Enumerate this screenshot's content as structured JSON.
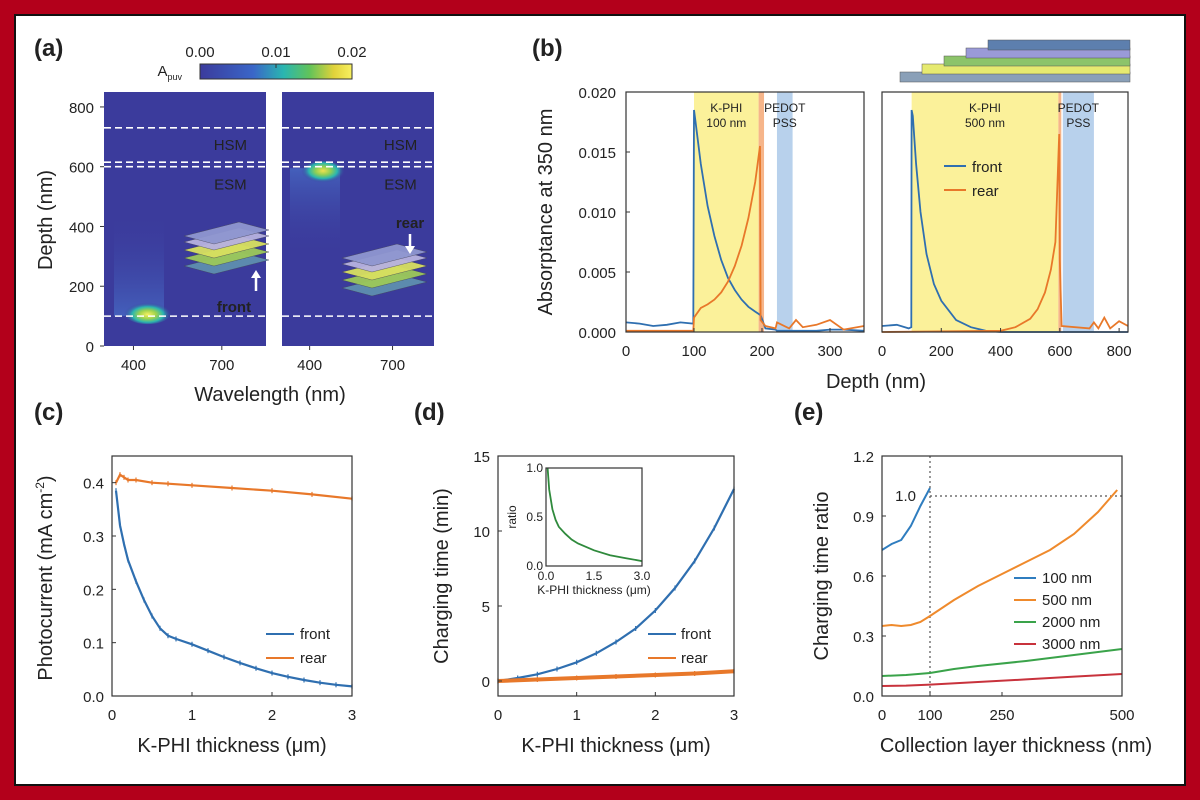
{
  "panels": {
    "a": "(a)",
    "b": "(b)",
    "c": "(c)",
    "d": "(d)",
    "e": "(e)"
  },
  "colors": {
    "front": "#2f6fb0",
    "rear": "#e8782a",
    "s100": "#2f7dbf",
    "s500": "#ef8a2c",
    "s2000": "#3aa34a",
    "s3000": "#c8323c",
    "yellow_band": "#fbf19a",
    "blue_band": "#b8d1ec",
    "background_map": "#3b3b9c",
    "frame": "#b3001b"
  },
  "chart_data": [
    {
      "id": "a",
      "type": "heatmap",
      "colorbar_label": "A",
      "colorbar_subscript": "puv",
      "colorbar_ticks": [
        "0.00",
        "0.01",
        "0.02"
      ],
      "colorbar_range": [
        0,
        0.02
      ],
      "xlabel": "Wavelength (nm)",
      "ylabel": "Depth (nm)",
      "ylim": [
        0,
        850
      ],
      "yticks": [
        "0",
        "200",
        "400",
        "600",
        "800"
      ],
      "xticks": [
        "400",
        "700"
      ],
      "layer_lines_depth": [
        100,
        600,
        615,
        730
      ],
      "layer_labels": [
        "HSM",
        "ESM"
      ],
      "subplots": [
        {
          "name": "front",
          "annotation": "front",
          "hotspot_depth": 100,
          "hotspot_wavelength": 380
        },
        {
          "name": "rear",
          "annotation": "rear",
          "hotspot_depth": 595,
          "hotspot_wavelength": 380
        }
      ]
    },
    {
      "id": "b",
      "type": "line",
      "ylabel": "Absorptance at 350 nm",
      "xlabel": "Depth (nm)",
      "ylim": [
        0,
        0.02
      ],
      "yticks": [
        "0.000",
        "0.005",
        "0.010",
        "0.015",
        "0.020"
      ],
      "legend": [
        "front",
        "rear"
      ],
      "subplots": [
        {
          "xlim": [
            0,
            350
          ],
          "xticks": [
            "0",
            "100",
            "200",
            "300"
          ],
          "band_labels": {
            "kphi": "K-PHI",
            "kphi_thickness": "100 nm",
            "pedot": "PEDOT",
            "pss": "PSS"
          },
          "yellow_band": [
            100,
            195
          ],
          "orange_band": [
            195,
            203
          ],
          "blue_band": [
            222,
            245
          ],
          "series": [
            {
              "name": "front",
              "x": [
                0,
                20,
                40,
                60,
                80,
                99,
                100,
                102,
                110,
                120,
                130,
                140,
                150,
                160,
                170,
                180,
                190,
                198,
                205,
                220,
                222,
                240,
                260,
                280,
                300,
                320,
                350
              ],
              "y": [
                0.0008,
                0.0007,
                0.0005,
                0.0006,
                0.0008,
                0.0007,
                0.0185,
                0.0176,
                0.014,
                0.0105,
                0.008,
                0.006,
                0.0045,
                0.0035,
                0.0027,
                0.0021,
                0.0017,
                0.0014,
                0.0003,
                0.0002,
                0.0001,
                0.0001,
                0.0001,
                0.0001,
                0.0002,
                0.0002,
                0.0001
              ]
            },
            {
              "name": "rear",
              "x": [
                0,
                99,
                100,
                110,
                120,
                130,
                140,
                150,
                160,
                170,
                180,
                190,
                197,
                198,
                205,
                220,
                222,
                240,
                250,
                260,
                280,
                300,
                320,
                350
              ],
              "y": [
                0.0001,
                0.0001,
                0.0012,
                0.002,
                0.0023,
                0.0027,
                0.0033,
                0.0042,
                0.0055,
                0.0072,
                0.0095,
                0.0125,
                0.0155,
                0.001,
                0.0005,
                0.0003,
                0.0008,
                0.0003,
                0.001,
                0.0004,
                0.0006,
                0.001,
                0.0002,
                0.0005
              ]
            }
          ]
        },
        {
          "xlim": [
            0,
            830
          ],
          "xticks": [
            "0",
            "200",
            "400",
            "600",
            "800"
          ],
          "band_labels": {
            "kphi": "K-PHI",
            "kphi_thickness": "500 nm",
            "pedot": "PEDOT",
            "pss": "PSS"
          },
          "yellow_band": [
            100,
            595
          ],
          "orange_band": [
            595,
            605
          ],
          "blue_band": [
            610,
            715
          ],
          "series": [
            {
              "name": "front",
              "x": [
                0,
                50,
                90,
                99,
                100,
                104,
                115,
                130,
                150,
                175,
                200,
                250,
                300,
                350,
                400,
                600,
                620,
                700,
                715,
                830
              ],
              "y": [
                0.0005,
                0.0006,
                0.0003,
                0.0004,
                0.0185,
                0.018,
                0.014,
                0.01,
                0.0065,
                0.004,
                0.0026,
                0.001,
                0.0004,
                0.0001,
                0.0,
                0.0,
                0.0,
                0.0,
                0.0,
                0.0
              ]
            },
            {
              "name": "rear",
              "x": [
                0,
                400,
                450,
                500,
                525,
                550,
                570,
                585,
                598,
                600,
                606,
                700,
                715,
                730,
                750,
                770,
                800,
                830
              ],
              "y": [
                0.0,
                0.0001,
                0.0004,
                0.0011,
                0.0019,
                0.0033,
                0.0052,
                0.0075,
                0.0165,
                0.006,
                0.0005,
                0.0003,
                0.0008,
                0.0003,
                0.0012,
                0.0003,
                0.0009,
                0.0005
              ]
            }
          ]
        }
      ]
    },
    {
      "id": "c",
      "type": "line",
      "ylabel": "Photocurrent (mA cm",
      "ylabel_sup": "-2",
      "ylabel_end": ")",
      "xlabel": "K-PHI thickness (μm)",
      "xlim": [
        0,
        3
      ],
      "ylim": [
        0,
        0.45
      ],
      "xticks": [
        "0",
        "1",
        "2",
        "3"
      ],
      "yticks": [
        "0.0",
        "0.1",
        "0.2",
        "0.3",
        "0.4"
      ],
      "legend": [
        "front",
        "rear"
      ],
      "series": [
        {
          "name": "front",
          "x": [
            0.05,
            0.1,
            0.15,
            0.2,
            0.3,
            0.4,
            0.5,
            0.6,
            0.7,
            0.8,
            1.0,
            1.2,
            1.4,
            1.6,
            1.8,
            2.0,
            2.2,
            2.4,
            2.6,
            2.8,
            3.0
          ],
          "y": [
            0.385,
            0.32,
            0.285,
            0.255,
            0.215,
            0.18,
            0.15,
            0.127,
            0.113,
            0.107,
            0.097,
            0.085,
            0.073,
            0.062,
            0.052,
            0.043,
            0.036,
            0.03,
            0.025,
            0.021,
            0.018
          ]
        },
        {
          "name": "rear",
          "x": [
            0.05,
            0.1,
            0.15,
            0.2,
            0.3,
            0.5,
            0.7,
            1.0,
            1.5,
            2.0,
            2.5,
            3.0
          ],
          "y": [
            0.4,
            0.415,
            0.41,
            0.405,
            0.405,
            0.4,
            0.398,
            0.395,
            0.39,
            0.385,
            0.378,
            0.37
          ]
        }
      ]
    },
    {
      "id": "d",
      "type": "line",
      "ylabel": "Charging time (min)",
      "xlabel": "K-PHI thickness (μm)",
      "xlim": [
        0,
        3
      ],
      "ylim": [
        -1,
        15
      ],
      "xticks": [
        "0",
        "1",
        "2",
        "3"
      ],
      "yticks": [
        "0",
        "5",
        "10",
        "15"
      ],
      "legend": [
        "front",
        "rear"
      ],
      "series": [
        {
          "name": "front",
          "x": [
            0,
            0.25,
            0.5,
            0.75,
            1.0,
            1.25,
            1.5,
            1.75,
            2.0,
            2.25,
            2.5,
            2.75,
            3.0
          ],
          "y": [
            0.0,
            0.2,
            0.45,
            0.8,
            1.25,
            1.85,
            2.6,
            3.5,
            4.7,
            6.2,
            8.0,
            10.2,
            12.8
          ]
        },
        {
          "name": "rear",
          "x": [
            0,
            0.5,
            1.0,
            1.5,
            2.0,
            2.5,
            3.0
          ],
          "y": [
            0.0,
            0.1,
            0.2,
            0.3,
            0.4,
            0.5,
            0.65
          ]
        }
      ],
      "inset": {
        "type": "line",
        "ylabel": "ratio",
        "xlabel": "K-PHI thickness (μm)",
        "xlim": [
          0,
          3
        ],
        "ylim": [
          0,
          1
        ],
        "xticks": [
          "0.0",
          "1.5",
          "3.0"
        ],
        "yticks": [
          "0.0",
          "0.5",
          "1.0"
        ],
        "series": [
          {
            "name": "ratio",
            "x": [
              0.05,
              0.1,
              0.2,
              0.3,
              0.4,
              0.6,
              0.8,
              1.0,
              1.5,
              2.0,
              2.5,
              3.0
            ],
            "y": [
              1.0,
              0.78,
              0.58,
              0.47,
              0.4,
              0.33,
              0.27,
              0.23,
              0.16,
              0.11,
              0.08,
              0.05
            ]
          }
        ]
      }
    },
    {
      "id": "e",
      "type": "line",
      "ylabel": "Charging time ratio",
      "xlabel": "Collection layer thickness (nm)",
      "xlim": [
        0,
        500
      ],
      "ylim": [
        0,
        1.2
      ],
      "xticks": [
        "0",
        "100",
        "250",
        "500"
      ],
      "yticks": [
        "0.0",
        "0.3",
        "0.6",
        "0.9",
        "1.2"
      ],
      "ref_label": "1.0",
      "ref_y": 1.0,
      "ref_x": 100,
      "legend": [
        "100 nm",
        "500 nm",
        "2000 nm",
        "3000 nm"
      ],
      "series": [
        {
          "name": "100 nm",
          "x": [
            0,
            20,
            40,
            60,
            80,
            100
          ],
          "y": [
            0.73,
            0.76,
            0.78,
            0.85,
            0.95,
            1.04
          ]
        },
        {
          "name": "500 nm",
          "x": [
            0,
            20,
            40,
            60,
            80,
            100,
            150,
            200,
            250,
            300,
            350,
            400,
            450,
            490
          ],
          "y": [
            0.35,
            0.355,
            0.35,
            0.355,
            0.37,
            0.4,
            0.48,
            0.55,
            0.61,
            0.67,
            0.73,
            0.81,
            0.92,
            1.03
          ]
        },
        {
          "name": "2000 nm",
          "x": [
            0,
            50,
            100,
            150,
            200,
            300,
            400,
            500
          ],
          "y": [
            0.1,
            0.105,
            0.115,
            0.135,
            0.15,
            0.175,
            0.205,
            0.235
          ]
        },
        {
          "name": "3000 nm",
          "x": [
            0,
            50,
            100,
            200,
            300,
            400,
            500
          ],
          "y": [
            0.05,
            0.052,
            0.057,
            0.07,
            0.083,
            0.097,
            0.11
          ]
        }
      ]
    }
  ]
}
